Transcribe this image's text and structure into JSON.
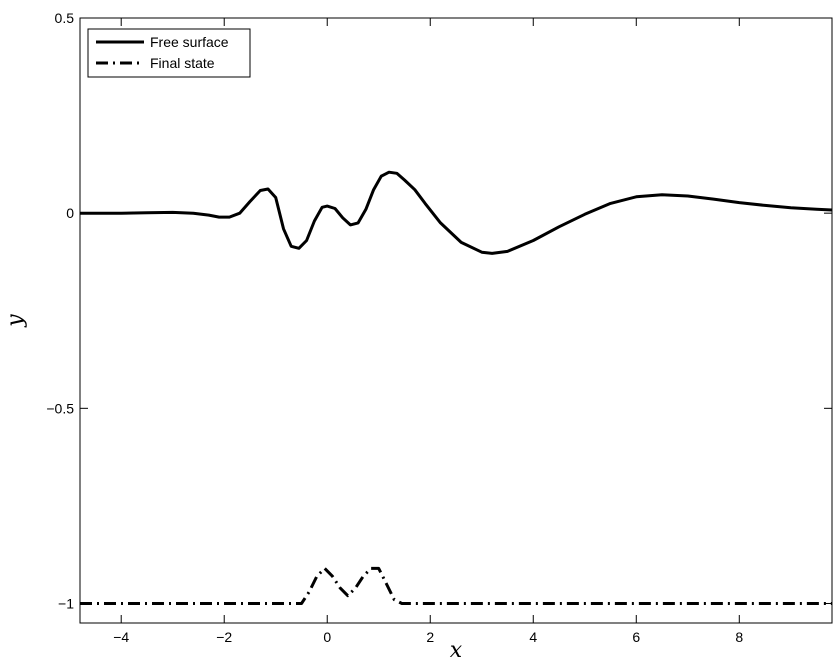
{
  "chart_data": {
    "type": "line",
    "title": "",
    "xlabel": "x",
    "ylabel": "y",
    "xlim": [
      -4.8,
      9.8
    ],
    "ylim": [
      -1.05,
      0.5
    ],
    "xticks": [
      -4,
      -2,
      0,
      2,
      4,
      6,
      8
    ],
    "xtick_labels": [
      "−4",
      "−2",
      "0",
      "2",
      "4",
      "6",
      "8"
    ],
    "yticks": [
      0.5,
      0,
      -0.5,
      -1
    ],
    "ytick_labels": [
      "0.5",
      "0",
      "−0.5",
      "−1"
    ],
    "grid": false,
    "legend_position": "top-left",
    "series": [
      {
        "name": "Free surface",
        "style": "solid",
        "color": "#000000",
        "x": [
          -4.8,
          -4.0,
          -3.5,
          -3.0,
          -2.6,
          -2.3,
          -2.1,
          -1.9,
          -1.7,
          -1.5,
          -1.3,
          -1.15,
          -1.0,
          -0.85,
          -0.7,
          -0.55,
          -0.4,
          -0.25,
          -0.1,
          0.0,
          0.15,
          0.3,
          0.45,
          0.6,
          0.75,
          0.9,
          1.05,
          1.2,
          1.35,
          1.5,
          1.7,
          1.9,
          2.2,
          2.6,
          3.0,
          3.2,
          3.5,
          4.0,
          4.5,
          5.0,
          5.5,
          6.0,
          6.5,
          7.0,
          7.5,
          8.0,
          8.5,
          9.0,
          9.5,
          9.8
        ],
        "values": [
          0.0,
          0.0,
          0.001,
          0.002,
          0.0,
          -0.005,
          -0.01,
          -0.01,
          0.0,
          0.03,
          0.058,
          0.062,
          0.04,
          -0.04,
          -0.085,
          -0.09,
          -0.07,
          -0.02,
          0.015,
          0.018,
          0.012,
          -0.012,
          -0.03,
          -0.025,
          0.01,
          0.06,
          0.095,
          0.105,
          0.102,
          0.085,
          0.06,
          0.025,
          -0.025,
          -0.075,
          -0.1,
          -0.103,
          -0.098,
          -0.07,
          -0.035,
          -0.003,
          0.025,
          0.042,
          0.047,
          0.044,
          0.036,
          0.027,
          0.02,
          0.014,
          0.01,
          0.008
        ]
      },
      {
        "name": "Final state",
        "style": "dash-dot",
        "color": "#000000",
        "x": [
          -4.8,
          -2.0,
          -0.5,
          -0.35,
          -0.2,
          -0.05,
          0.1,
          0.25,
          0.4,
          0.55,
          0.7,
          0.85,
          1.0,
          1.15,
          1.3,
          1.45,
          2.0,
          4.0,
          6.0,
          8.0,
          9.8
        ],
        "values": [
          -1.0,
          -1.0,
          -1.0,
          -0.97,
          -0.93,
          -0.91,
          -0.93,
          -0.96,
          -0.98,
          -0.96,
          -0.93,
          -0.91,
          -0.91,
          -0.95,
          -0.99,
          -1.0,
          -1.0,
          -1.0,
          -1.0,
          -1.0,
          -1.0
        ]
      }
    ]
  }
}
